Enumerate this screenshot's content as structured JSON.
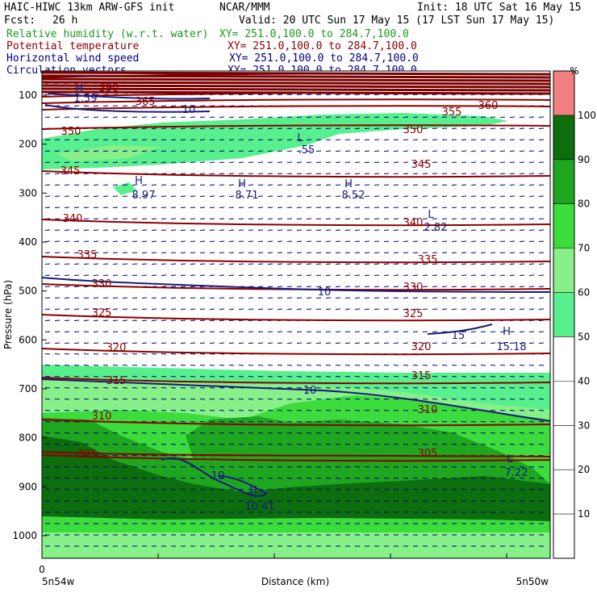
{
  "header": {
    "model": "HAIC-HIWC 13km ARW-GFS init",
    "org": "NCAR/MMM",
    "init": "Init: 18 UTC Sat 16 May 15",
    "fcst_label": "Fcst:",
    "fcst_value": "26 h",
    "valid": "Valid: 20 UTC Sun 17 May 15 (17 LST Sun 17 May 15)"
  },
  "legend": [
    {
      "name": "Relative humidity (w.r.t. water)",
      "xy": "XY= 251.0,100.0 to 284.7,100.0",
      "color": "#1a9a1a"
    },
    {
      "name": "Potential temperature",
      "xy": "XY= 251.0,100.0 to 284.7,100.0",
      "color": "#8b0000"
    },
    {
      "name": "Horizontal wind speed",
      "xy": "XY= 251.0,100.0 to 284.7,100.0",
      "color": "#00007f"
    },
    {
      "name": "Circulation vectors",
      "xy": "XY= 251.0,100.0 to 284.7,100.0",
      "color": "#00007f"
    }
  ],
  "chart_data": {
    "type": "heatmap",
    "ylabel": "Pressure (hPa)",
    "xlabel": "Distance (km)",
    "x_start_label": "0",
    "x_left_label": "5n54w",
    "x_right_label": "5n50w",
    "y_ticks": [
      100,
      200,
      300,
      400,
      500,
      600,
      700,
      800,
      900,
      1000
    ],
    "colorbar": {
      "unit": "%",
      "levels": [
        10,
        20,
        30,
        40,
        50,
        60,
        70,
        80,
        90,
        100
      ],
      "bands": [
        {
          "from": 50,
          "to": 60,
          "color": "#57f08c"
        },
        {
          "from": 60,
          "to": 70,
          "color": "#88f088"
        },
        {
          "from": 70,
          "to": 80,
          "color": "#3ddc3d"
        },
        {
          "from": 80,
          "to": 90,
          "color": "#1ea61e"
        },
        {
          "from": 90,
          "to": 100,
          "color": "#0c6e0c"
        },
        {
          "from": 100,
          "to": 110,
          "color": "#f08080"
        }
      ]
    },
    "theta_labels": [
      "390",
      "365",
      "360",
      "355",
      "350",
      "345",
      "340",
      "335",
      "330",
      "325",
      "320",
      "315",
      "310",
      "305"
    ],
    "wind_labels": [
      "10",
      "10",
      "10",
      "10",
      "15"
    ],
    "highs_lows": [
      {
        "mark": "H",
        "value": "8.97"
      },
      {
        "mark": "H",
        "value": "8.71"
      },
      {
        "mark": "H",
        "value": "8.52"
      },
      {
        "mark": "L",
        "value": ".55"
      },
      {
        "mark": "L",
        "value": "2.82"
      },
      {
        "mark": "H",
        "value": "15.18"
      },
      {
        "mark": "H",
        "value": "10.41"
      },
      {
        "mark": "L",
        "value": "7.22"
      },
      {
        "mark": "H",
        "value": "1.59"
      }
    ]
  }
}
